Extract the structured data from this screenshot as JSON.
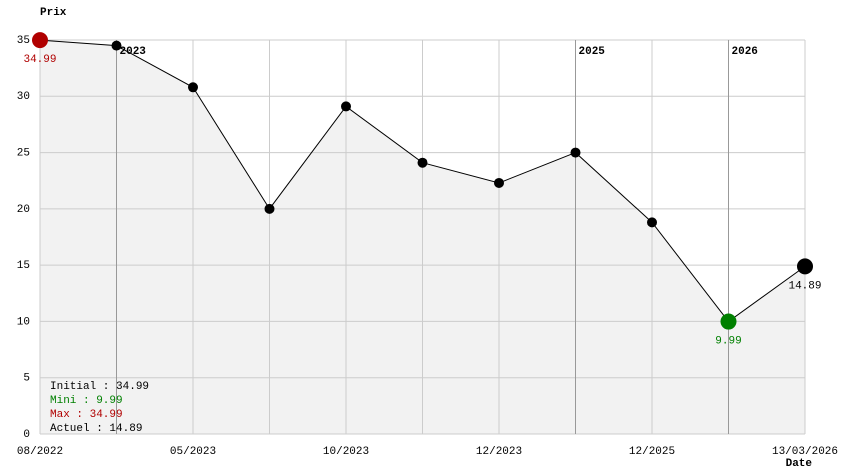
{
  "chart_data": {
    "type": "line",
    "y_label": "Prix",
    "x_label": "Date",
    "categories": [
      "08/2022",
      null,
      "05/2023",
      null,
      "10/2023",
      null,
      "12/2023",
      null,
      "12/2025",
      null,
      "13/03/2026"
    ],
    "year_markers": [
      null,
      "2023",
      null,
      null,
      null,
      null,
      null,
      "2025",
      null,
      "2026",
      null
    ],
    "values": [
      34.99,
      34.5,
      30.8,
      20,
      29.1,
      24.1,
      22.3,
      25,
      18.8,
      9.99,
      14.89
    ],
    "value_labels": [
      "34.99",
      null,
      null,
      null,
      null,
      null,
      null,
      null,
      null,
      "9.99",
      "14.89"
    ],
    "marker_colors": [
      "#b00000",
      "#000000",
      "#000000",
      "#000000",
      "#000000",
      "#000000",
      "#000000",
      "#000000",
      "#000000",
      "#008000",
      "#000000"
    ],
    "color": "#000000",
    "fill": "#f2f2f2",
    "ylim": [
      0,
      35
    ],
    "yticks": [
      0,
      5,
      10,
      15,
      20,
      25,
      30,
      35
    ],
    "grid": true,
    "summary": [
      {
        "text": "Initial : 34.99",
        "color": "#000000"
      },
      {
        "text": "Mini : 9.99",
        "color": "#008000"
      },
      {
        "text": "Max : 34.99",
        "color": "#b00000"
      },
      {
        "text": "Actuel : 14.89",
        "color": "#000000"
      }
    ]
  }
}
